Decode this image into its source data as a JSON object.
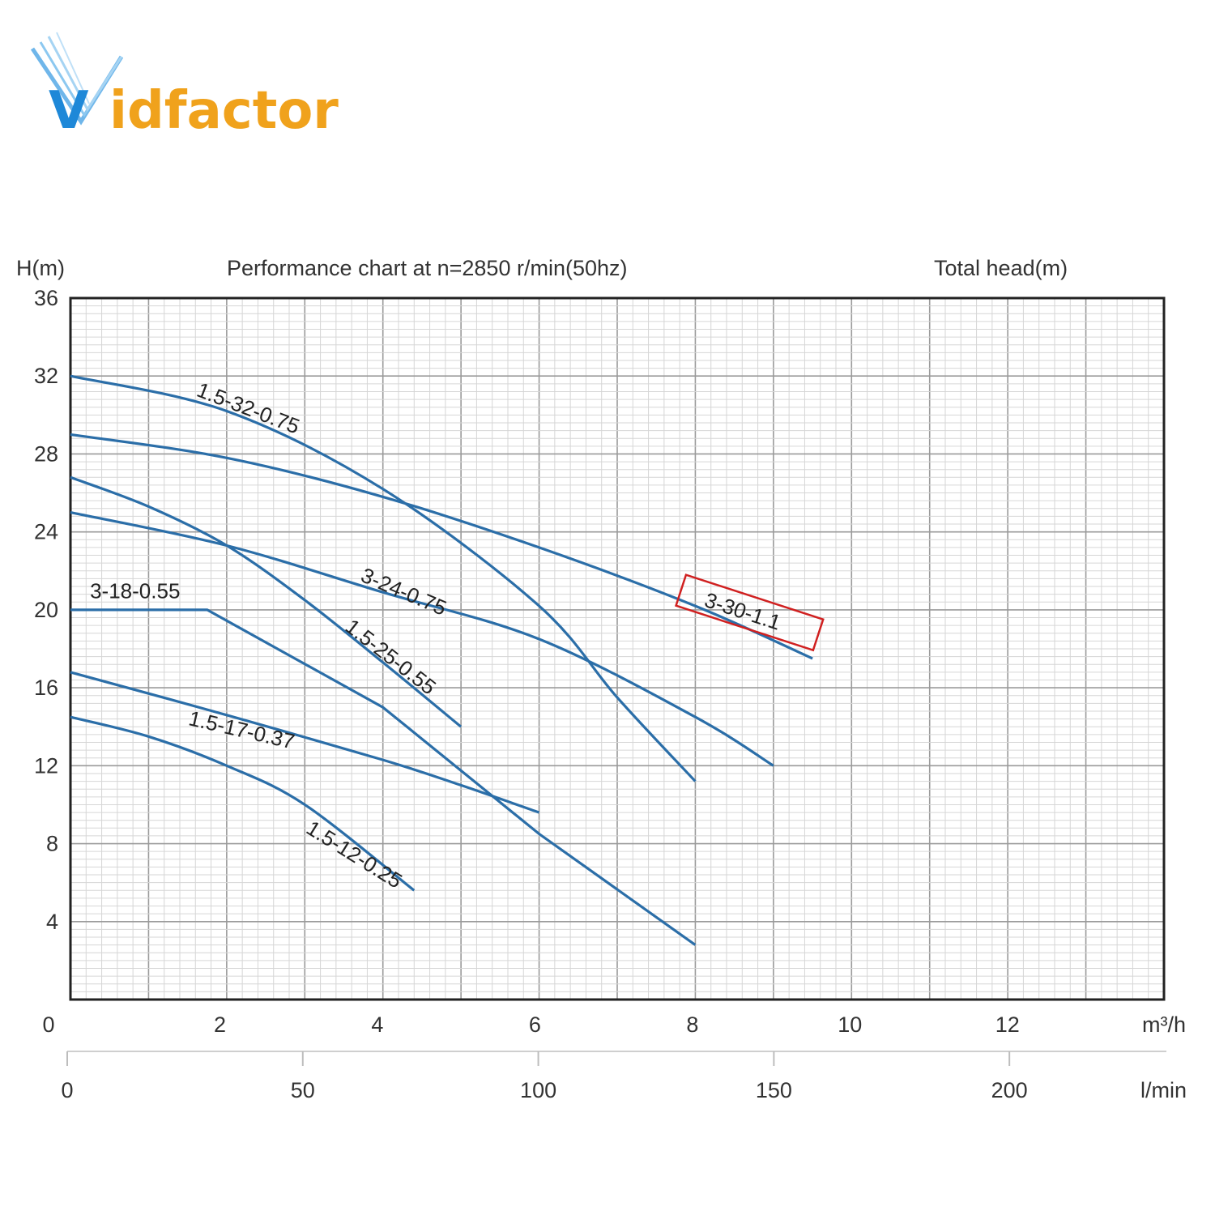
{
  "logo": {
    "text_main": "idfactor",
    "text_initial": "V",
    "initial_color": "#1e88d8",
    "main_color": "#f0a21c"
  },
  "chart_data": {
    "type": "line",
    "title": "Performance chart at n=2850 r/min(50hz)",
    "ylabel": "H(m)",
    "right_header": "Total head(m)",
    "xunit": "m³/h",
    "x2unit": "l/min",
    "xlim": [
      0,
      14
    ],
    "ylim": [
      0,
      36
    ],
    "x_ticks": [
      "0",
      "2",
      "4",
      "6",
      "8",
      "10",
      "12"
    ],
    "x2_ticks": [
      "0",
      "50",
      "100",
      "150",
      "200"
    ],
    "y_ticks": [
      "4",
      "8",
      "12",
      "16",
      "20",
      "24",
      "28",
      "32",
      "36"
    ],
    "grid": true,
    "line_color": "#2b6ea8",
    "highlight_color": "#d02020",
    "highlight_series": "3-30-1.1",
    "series": [
      {
        "name": "1.5-32-0.75",
        "x": [
          0,
          2,
          4,
          6,
          7,
          8
        ],
        "y": [
          32,
          30.2,
          26.2,
          20.2,
          15.5,
          11.2
        ]
      },
      {
        "name": "3-30-1.1",
        "x": [
          0,
          2,
          4,
          6,
          8,
          9.5
        ],
        "y": [
          29,
          27.8,
          25.8,
          23.2,
          20.2,
          17.5
        ]
      },
      {
        "name": "3-24-0.75",
        "x": [
          0,
          2,
          4,
          6,
          8,
          9
        ],
        "y": [
          25,
          23.3,
          20.9,
          18.5,
          14.5,
          12
        ]
      },
      {
        "name": "1.5-25-0.55",
        "x": [
          0,
          1,
          2,
          3,
          4,
          5
        ],
        "y": [
          26.8,
          25.3,
          23.3,
          20.5,
          17.3,
          14
        ]
      },
      {
        "name": "3-18-0.55",
        "x": [
          0,
          1.75,
          4,
          6,
          8
        ],
        "y": [
          20,
          20,
          15,
          8.5,
          2.8
        ]
      },
      {
        "name": "1.5-17-0.37",
        "x": [
          0,
          2,
          4,
          5,
          6
        ],
        "y": [
          16.8,
          14.6,
          12.3,
          11,
          9.6
        ]
      },
      {
        "name": "1.5-12-0.25",
        "x": [
          0,
          1,
          2,
          3,
          4.4
        ],
        "y": [
          14.5,
          13.5,
          12,
          10,
          5.6
        ]
      }
    ]
  }
}
